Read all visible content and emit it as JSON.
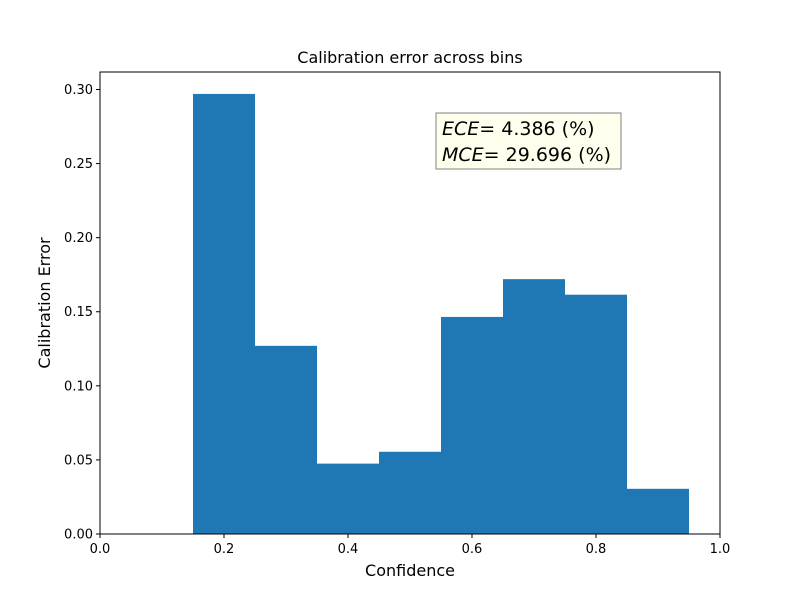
{
  "chart_data": {
    "type": "bar",
    "title": "Calibration error across bins",
    "xlabel": "Confidence",
    "ylabel": "Calibration Error",
    "xlim": [
      0.0,
      1.0
    ],
    "ylim": [
      0.0,
      0.3118
    ],
    "xticks": [
      0.0,
      0.2,
      0.4,
      0.6,
      0.8,
      1.0
    ],
    "xtick_labels": [
      "0.0",
      "0.2",
      "0.4",
      "0.6",
      "0.8",
      "1.0"
    ],
    "yticks": [
      0.0,
      0.05,
      0.1,
      0.15,
      0.2,
      0.25,
      0.3
    ],
    "ytick_labels": [
      "0.00",
      "0.05",
      "0.10",
      "0.15",
      "0.20",
      "0.25",
      "0.30"
    ],
    "bin_width": 0.1,
    "bin_centers": [
      0.2,
      0.3,
      0.4,
      0.5,
      0.6,
      0.7,
      0.8,
      0.9
    ],
    "values": [
      0.297,
      0.127,
      0.0475,
      0.0555,
      0.1465,
      0.172,
      0.1615,
      0.0305
    ],
    "bar_color": "#1f77b4",
    "grid": false,
    "annotation": {
      "ece_label": "ECE",
      "ece_value": "= 4.386 (%)",
      "mce_label": "MCE",
      "mce_value": "= 29.696 (%)",
      "box_fill": "#ffffee",
      "box_edge": "#808080"
    }
  }
}
